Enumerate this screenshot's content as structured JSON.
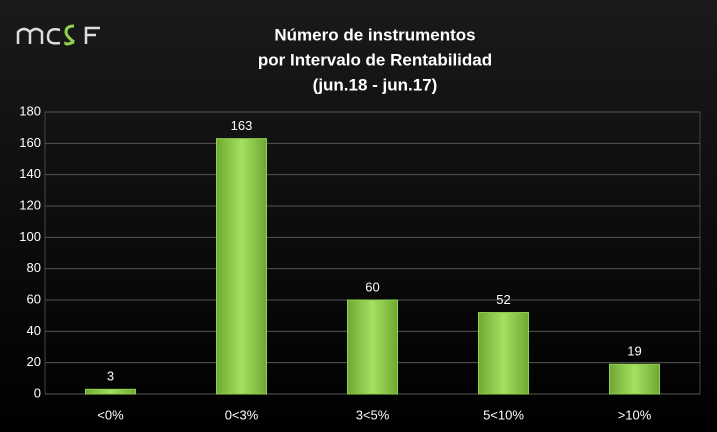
{
  "chart_data": {
    "type": "bar",
    "title": [
      "Número de instrumentos",
      "por Intervalo de Rentabilidad",
      "(jun.18 - jun.17)"
    ],
    "categories": [
      "<0%",
      "0<3%",
      "3<5%",
      "5<10%",
      ">10%"
    ],
    "values": [
      3,
      163,
      60,
      52,
      19
    ],
    "color": "#92d050",
    "ylim": [
      0,
      180
    ],
    "yticks": [
      0,
      20,
      40,
      60,
      80,
      100,
      120,
      140,
      160,
      180
    ],
    "grid": true
  }
}
